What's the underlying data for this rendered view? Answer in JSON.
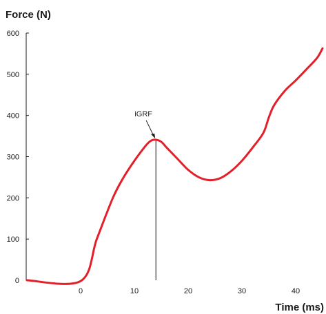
{
  "chart_data": {
    "type": "line",
    "ylabel": "Force (N)",
    "xlabel": "Time (ms)",
    "xlim": [
      -10,
      45
    ],
    "ylim": [
      0,
      600
    ],
    "x_ticks": [
      0,
      10,
      20,
      30,
      40
    ],
    "y_ticks": [
      0,
      100,
      200,
      300,
      400,
      500,
      600
    ],
    "grid": false,
    "series": [
      {
        "color": "#e3202a",
        "points": [
          [
            -10,
            0
          ],
          [
            0,
            -2
          ],
          [
            3,
            100
          ],
          [
            6,
            200
          ],
          [
            8,
            250
          ],
          [
            10,
            290
          ],
          [
            12,
            325
          ],
          [
            13,
            338
          ],
          [
            14,
            341
          ],
          [
            15,
            336
          ],
          [
            16,
            322
          ],
          [
            18,
            295
          ],
          [
            20,
            268
          ],
          [
            22,
            250
          ],
          [
            24,
            243
          ],
          [
            26,
            248
          ],
          [
            28,
            265
          ],
          [
            30,
            290
          ],
          [
            32,
            322
          ],
          [
            34,
            358
          ],
          [
            35,
            395
          ],
          [
            36,
            425
          ],
          [
            38,
            460
          ],
          [
            40,
            485
          ],
          [
            42,
            512
          ],
          [
            44,
            540
          ],
          [
            45,
            563
          ]
        ]
      }
    ],
    "annotations": [
      {
        "label": "iGRF",
        "x": 14,
        "y": 341
      }
    ]
  }
}
